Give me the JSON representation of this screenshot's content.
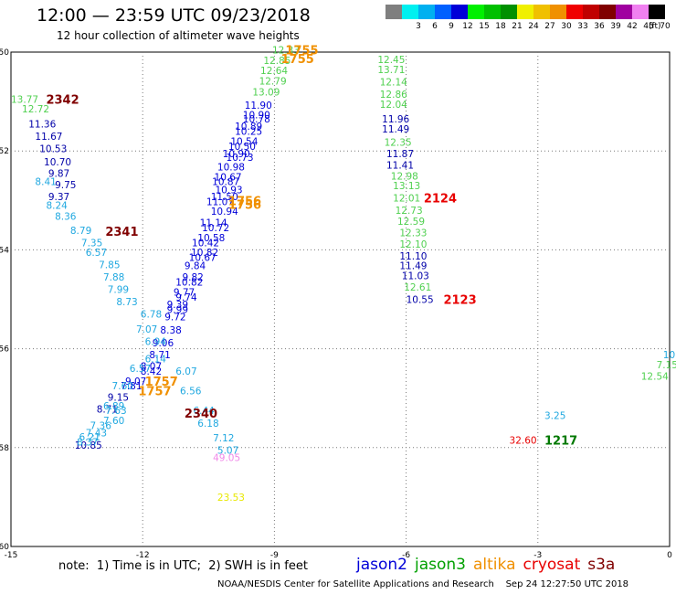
{
  "title": "12:00 — 23:59 UTC 09/23/2018",
  "subtitle": "12 hour collection of altimeter wave heights",
  "color_scale": {
    "unit": "(ft)",
    "bins": [
      {
        "label": "",
        "color": "#7f7f7f"
      },
      {
        "label": "3",
        "color": "#00f0f0"
      },
      {
        "label": "6",
        "color": "#00b0f0"
      },
      {
        "label": "9",
        "color": "#0060ff"
      },
      {
        "label": "12",
        "color": "#0000d8"
      },
      {
        "label": "15",
        "color": "#00f000"
      },
      {
        "label": "18",
        "color": "#00c000"
      },
      {
        "label": "21",
        "color": "#009000"
      },
      {
        "label": "24",
        "color": "#f0f000"
      },
      {
        "label": "27",
        "color": "#f0c000"
      },
      {
        "label": "30",
        "color": "#f09000"
      },
      {
        "label": "33",
        "color": "#f00000"
      },
      {
        "label": "36",
        "color": "#c00000"
      },
      {
        "label": "39",
        "color": "#800000"
      },
      {
        "label": "42",
        "color": "#a000a0"
      },
      {
        "label": "45",
        "color": "#f080f0"
      },
      {
        "label": "70",
        "color": "#000000"
      }
    ]
  },
  "map": {
    "lon_range": [
      -15,
      0
    ],
    "lat_range": [
      -60,
      -50
    ],
    "lon_ticks": [
      "-15",
      "-12",
      "-9",
      "-6",
      "-3",
      "0"
    ],
    "lat_ticks": [
      "-50",
      "-52",
      "-54",
      "-56",
      "-58",
      "-60"
    ],
    "colors": {
      "navy": "#0000a8",
      "blue": "#0000d8",
      "sky": "#20a8e0",
      "green": "#50d050",
      "orange": "#f09000",
      "red": "#e80000",
      "darkred": "#800000",
      "dkgreen": "#007800",
      "yellow": "#e8e800",
      "pink": "#f088e8",
      "grid": "#7a7a7a"
    },
    "labels": [
      {
        "text": "12.33",
        "lon": -9.05,
        "lat": -49.95,
        "c": "green"
      },
      {
        "text": "12.85",
        "lon": -9.25,
        "lat": -50.17,
        "c": "green"
      },
      {
        "text": "12.64",
        "lon": -9.32,
        "lat": -50.37,
        "c": "green"
      },
      {
        "text": "12.79",
        "lon": -9.35,
        "lat": -50.58,
        "c": "green"
      },
      {
        "text": "13.09",
        "lon": -9.5,
        "lat": -50.8,
        "c": "green"
      },
      {
        "text": "11.90",
        "lon": -9.68,
        "lat": -51.07,
        "c": "blue"
      },
      {
        "text": "10.90",
        "lon": -9.72,
        "lat": -51.27,
        "c": "blue"
      },
      {
        "text": "10.78",
        "lon": -9.72,
        "lat": -51.35,
        "c": "blue"
      },
      {
        "text": "10.89",
        "lon": -9.9,
        "lat": -51.5,
        "c": "blue"
      },
      {
        "text": "10.25",
        "lon": -9.9,
        "lat": -51.6,
        "c": "blue"
      },
      {
        "text": "10.54",
        "lon": -10.0,
        "lat": -51.8,
        "c": "blue"
      },
      {
        "text": "10.50",
        "lon": -10.05,
        "lat": -51.9,
        "c": "blue"
      },
      {
        "text": "10.90",
        "lon": -10.18,
        "lat": -52.05,
        "c": "blue"
      },
      {
        "text": "10.73",
        "lon": -10.1,
        "lat": -52.13,
        "c": "blue"
      },
      {
        "text": "10.98",
        "lon": -10.3,
        "lat": -52.32,
        "c": "blue"
      },
      {
        "text": "10.67",
        "lon": -10.37,
        "lat": -52.52,
        "c": "blue"
      },
      {
        "text": "10.87",
        "lon": -10.42,
        "lat": -52.62,
        "c": "blue"
      },
      {
        "text": "10.93",
        "lon": -10.35,
        "lat": -52.78,
        "c": "blue"
      },
      {
        "text": "11.50",
        "lon": -10.45,
        "lat": -52.92,
        "c": "blue"
      },
      {
        "text": "11.07",
        "lon": -10.55,
        "lat": -53.02,
        "c": "blue"
      },
      {
        "text": "10.94",
        "lon": -10.45,
        "lat": -53.22,
        "c": "blue"
      },
      {
        "text": "11.14",
        "lon": -10.7,
        "lat": -53.45,
        "c": "blue"
      },
      {
        "text": "10.72",
        "lon": -10.65,
        "lat": -53.55,
        "c": "blue"
      },
      {
        "text": "10.58",
        "lon": -10.75,
        "lat": -53.75,
        "c": "blue"
      },
      {
        "text": "10.42",
        "lon": -10.88,
        "lat": -53.85,
        "c": "blue"
      },
      {
        "text": "10.82",
        "lon": -10.9,
        "lat": -54.05,
        "c": "blue"
      },
      {
        "text": "10.67",
        "lon": -10.95,
        "lat": -54.15,
        "c": "blue"
      },
      {
        "text": "9.84",
        "lon": -11.05,
        "lat": -54.32,
        "c": "blue"
      },
      {
        "text": "9.82",
        "lon": -11.1,
        "lat": -54.55,
        "c": "blue"
      },
      {
        "text": "10.82",
        "lon": -11.25,
        "lat": -54.65,
        "c": "blue"
      },
      {
        "text": "9.77",
        "lon": -11.3,
        "lat": -54.85,
        "c": "blue"
      },
      {
        "text": "9.74",
        "lon": -11.25,
        "lat": -54.95,
        "c": "blue"
      },
      {
        "text": "9.39",
        "lon": -11.45,
        "lat": -55.1,
        "c": "blue"
      },
      {
        "text": "9.99",
        "lon": -11.45,
        "lat": -55.2,
        "c": "blue"
      },
      {
        "text": "9.72",
        "lon": -11.5,
        "lat": -55.35,
        "c": "blue"
      },
      {
        "text": "8.38",
        "lon": -11.6,
        "lat": -55.62,
        "c": "blue"
      },
      {
        "text": "9.06",
        "lon": -11.78,
        "lat": -55.88,
        "c": "blue"
      },
      {
        "text": "8.71",
        "lon": -11.85,
        "lat": -56.12,
        "c": "blue"
      },
      {
        "text": "8.07",
        "lon": -12.05,
        "lat": -56.35,
        "c": "blue"
      },
      {
        "text": "8.42",
        "lon": -12.05,
        "lat": -56.45,
        "c": "blue"
      },
      {
        "text": "9.07",
        "lon": -12.4,
        "lat": -56.65,
        "c": "blue"
      },
      {
        "text": "7.81",
        "lon": -12.5,
        "lat": -56.75,
        "c": "blue"
      },
      {
        "text": "9.15",
        "lon": -12.8,
        "lat": -56.98,
        "c": "navy"
      },
      {
        "text": "8.71",
        "lon": -13.05,
        "lat": -57.22,
        "c": "navy"
      },
      {
        "text": "10.85",
        "lon": -13.55,
        "lat": -57.95,
        "c": "navy"
      },
      {
        "text": "6.94",
        "lon": -11.95,
        "lat": -55.85,
        "c": "sky"
      },
      {
        "text": "7.07",
        "lon": -12.15,
        "lat": -55.6,
        "c": "sky"
      },
      {
        "text": "6.78",
        "lon": -12.05,
        "lat": -55.3,
        "c": "sky"
      },
      {
        "text": "8.73",
        "lon": -12.6,
        "lat": -55.05,
        "c": "sky"
      },
      {
        "text": "7.99",
        "lon": -12.8,
        "lat": -54.8,
        "c": "sky"
      },
      {
        "text": "7.88",
        "lon": -12.9,
        "lat": -54.55,
        "c": "sky"
      },
      {
        "text": "7.85",
        "lon": -13.0,
        "lat": -54.3,
        "c": "sky"
      },
      {
        "text": "6.57",
        "lon": -13.3,
        "lat": -54.05,
        "c": "sky"
      },
      {
        "text": "7.35",
        "lon": -13.4,
        "lat": -53.85,
        "c": "sky"
      },
      {
        "text": "8.79",
        "lon": -13.65,
        "lat": -53.6,
        "c": "sky"
      },
      {
        "text": "8.36",
        "lon": -14.0,
        "lat": -53.32,
        "c": "sky"
      },
      {
        "text": "8.24",
        "lon": -14.2,
        "lat": -53.1,
        "c": "sky"
      },
      {
        "text": "8.41",
        "lon": -14.45,
        "lat": -52.62,
        "c": "sky"
      },
      {
        "text": "6.14",
        "lon": -11.95,
        "lat": -56.2,
        "c": "sky"
      },
      {
        "text": "6.57",
        "lon": -12.3,
        "lat": -56.4,
        "c": "sky"
      },
      {
        "text": "7.60",
        "lon": -12.7,
        "lat": -56.75,
        "c": "sky"
      },
      {
        "text": "6.07",
        "lon": -11.25,
        "lat": -56.45,
        "c": "sky"
      },
      {
        "text": "6.56",
        "lon": -11.15,
        "lat": -56.85,
        "c": "sky"
      },
      {
        "text": "6.44",
        "lon": -10.85,
        "lat": -57.25,
        "c": "sky"
      },
      {
        "text": "6.18",
        "lon": -10.75,
        "lat": -57.5,
        "c": "sky"
      },
      {
        "text": "7.12",
        "lon": -10.4,
        "lat": -57.8,
        "c": "sky"
      },
      {
        "text": "5.07",
        "lon": -10.3,
        "lat": -58.05,
        "c": "sky"
      },
      {
        "text": "6.89",
        "lon": -12.9,
        "lat": -57.15,
        "c": "sky"
      },
      {
        "text": "7.63",
        "lon": -12.85,
        "lat": -57.25,
        "c": "sky"
      },
      {
        "text": "7.60",
        "lon": -12.9,
        "lat": -57.45,
        "c": "sky"
      },
      {
        "text": "7.36",
        "lon": -13.2,
        "lat": -57.55,
        "c": "sky"
      },
      {
        "text": "7.43",
        "lon": -13.3,
        "lat": -57.7,
        "c": "sky"
      },
      {
        "text": "6.21",
        "lon": -13.45,
        "lat": -57.78,
        "c": "sky"
      },
      {
        "text": "8.37",
        "lon": -13.5,
        "lat": -57.88,
        "c": "sky"
      },
      {
        "text": "13.77",
        "lon": -15.0,
        "lat": -50.95,
        "c": "green"
      },
      {
        "text": "12.72",
        "lon": -14.75,
        "lat": -51.15,
        "c": "green"
      },
      {
        "text": "11.36",
        "lon": -14.6,
        "lat": -51.45,
        "c": "navy"
      },
      {
        "text": "11.67",
        "lon": -14.45,
        "lat": -51.7,
        "c": "navy"
      },
      {
        "text": "10.53",
        "lon": -14.35,
        "lat": -51.95,
        "c": "navy"
      },
      {
        "text": "10.70",
        "lon": -14.25,
        "lat": -52.22,
        "c": "navy"
      },
      {
        "text": "9.87",
        "lon": -14.15,
        "lat": -52.45,
        "c": "navy"
      },
      {
        "text": "9.75",
        "lon": -14.0,
        "lat": -52.68,
        "c": "navy"
      },
      {
        "text": "9.37",
        "lon": -14.15,
        "lat": -52.92,
        "c": "navy"
      },
      {
        "text": "12.45",
        "lon": -6.65,
        "lat": -50.15,
        "c": "green"
      },
      {
        "text": "13.71",
        "lon": -6.65,
        "lat": -50.35,
        "c": "green"
      },
      {
        "text": "12.14",
        "lon": -6.6,
        "lat": -50.6,
        "c": "green"
      },
      {
        "text": "12.86",
        "lon": -6.6,
        "lat": -50.85,
        "c": "green"
      },
      {
        "text": "12.04",
        "lon": -6.6,
        "lat": -51.05,
        "c": "green"
      },
      {
        "text": "11.96",
        "lon": -6.55,
        "lat": -51.35,
        "c": "navy"
      },
      {
        "text": "11.49",
        "lon": -6.55,
        "lat": -51.55,
        "c": "navy"
      },
      {
        "text": "12.35",
        "lon": -6.5,
        "lat": -51.82,
        "c": "green"
      },
      {
        "text": "11.87",
        "lon": -6.45,
        "lat": -52.05,
        "c": "navy"
      },
      {
        "text": "11.41",
        "lon": -6.45,
        "lat": -52.28,
        "c": "navy"
      },
      {
        "text": "12.98",
        "lon": -6.35,
        "lat": -52.5,
        "c": "green"
      },
      {
        "text": "13.13",
        "lon": -6.3,
        "lat": -52.7,
        "c": "green"
      },
      {
        "text": "12.01",
        "lon": -6.3,
        "lat": -52.95,
        "c": "green"
      },
      {
        "text": "12.73",
        "lon": -6.25,
        "lat": -53.2,
        "c": "green"
      },
      {
        "text": "12.59",
        "lon": -6.2,
        "lat": -53.42,
        "c": "green"
      },
      {
        "text": "12.33",
        "lon": -6.15,
        "lat": -53.65,
        "c": "green"
      },
      {
        "text": "12.10",
        "lon": -6.15,
        "lat": -53.88,
        "c": "green"
      },
      {
        "text": "11.10",
        "lon": -6.15,
        "lat": -54.12,
        "c": "navy"
      },
      {
        "text": "11.49",
        "lon": -6.15,
        "lat": -54.32,
        "c": "navy"
      },
      {
        "text": "11.03",
        "lon": -6.1,
        "lat": -54.52,
        "c": "navy"
      },
      {
        "text": "12.61",
        "lon": -6.05,
        "lat": -54.75,
        "c": "green"
      },
      {
        "text": "10.55",
        "lon": -6.0,
        "lat": -55.0,
        "c": "navy"
      },
      {
        "text": "10.",
        "lon": -0.15,
        "lat": -56.12,
        "c": "sky"
      },
      {
        "text": "7.15",
        "lon": -0.3,
        "lat": -56.32,
        "c": "green"
      },
      {
        "text": "12.54",
        "lon": -0.65,
        "lat": -56.55,
        "c": "green"
      },
      {
        "text": "3.25",
        "lon": -2.85,
        "lat": -57.35,
        "c": "sky"
      },
      {
        "text": "32.60",
        "lon": -3.65,
        "lat": -57.85,
        "c": "red"
      },
      {
        "text": "49.05",
        "lon": -10.4,
        "lat": -58.2,
        "c": "pink"
      },
      {
        "text": "23.53",
        "lon": -10.3,
        "lat": -59.0,
        "c": "yellow"
      }
    ],
    "passes": [
      {
        "text": "1755",
        "lon": -8.75,
        "lat": -49.95,
        "c": "orange"
      },
      {
        "text": "1755",
        "lon": -8.85,
        "lat": -50.13,
        "c": "orange"
      },
      {
        "text": "2342",
        "lon": -14.2,
        "lat": -50.95,
        "c": "darkred"
      },
      {
        "text": "1756",
        "lon": -10.05,
        "lat": -53.0,
        "c": "orange"
      },
      {
        "text": "1756",
        "lon": -10.05,
        "lat": -53.08,
        "c": "orange"
      },
      {
        "text": "2124",
        "lon": -5.6,
        "lat": -52.95,
        "c": "red"
      },
      {
        "text": "2341",
        "lon": -12.85,
        "lat": -53.62,
        "c": "darkred"
      },
      {
        "text": "2123",
        "lon": -5.15,
        "lat": -55.0,
        "c": "red"
      },
      {
        "text": "1757",
        "lon": -11.95,
        "lat": -56.65,
        "c": "orange"
      },
      {
        "text": "1757",
        "lon": -12.1,
        "lat": -56.85,
        "c": "orange"
      },
      {
        "text": "2340",
        "lon": -11.05,
        "lat": -57.3,
        "c": "darkred"
      },
      {
        "text": "1217",
        "lon": -2.85,
        "lat": -57.85,
        "c": "dkgreen"
      }
    ]
  },
  "note": "note:  1) Time is in UTC;  2) SWH is in feet",
  "satellites": [
    {
      "name": "jason2",
      "color": "#0000d8"
    },
    {
      "name": "jason3",
      "color": "#00a000"
    },
    {
      "name": "altika",
      "color": "#f09000"
    },
    {
      "name": "cryosat",
      "color": "#e80000"
    },
    {
      "name": "s3a",
      "color": "#800000"
    }
  ],
  "credit": "NOAA/NESDIS Center for Satellite Applications and Research    Sep 24 12:27:50 UTC 2018"
}
